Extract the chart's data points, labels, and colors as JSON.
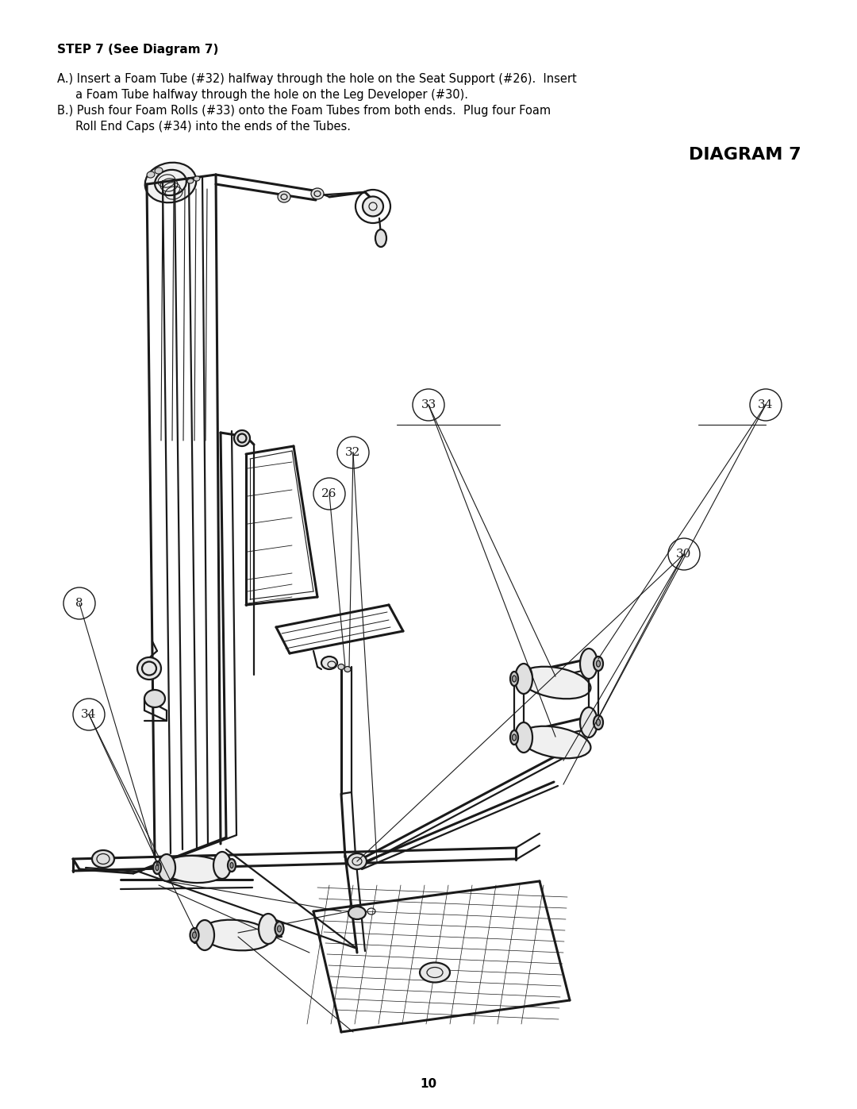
{
  "background_color": "#ffffff",
  "page_width": 10.8,
  "page_height": 13.97,
  "dpi": 100,
  "title_text": "STEP 7 (See Diagram 7)",
  "title_fontsize": 11,
  "body_text_A_line1": "A.) Insert a Foam Tube (#32) halfway through the hole on the Seat Support (#26).  Insert",
  "body_text_A_line2": "     a Foam Tube halfway through the hole on the Leg Developer (#30).",
  "body_text_B_line1": "B.) Push four Foam Rolls (#33) onto the Foam Tubes from both ends.  Plug four Foam",
  "body_text_B_line2": "     Roll End Caps (#34) into the ends of the Tubes.",
  "body_fontsize": 10.5,
  "diagram_label": "DIAGRAM 7",
  "diagram_label_fontsize": 16,
  "page_number": "10",
  "page_number_fontsize": 11,
  "lc": "#1a1a1a",
  "lw_main": 1.6,
  "lw_thin": 0.9,
  "lw_cable": 0.8
}
